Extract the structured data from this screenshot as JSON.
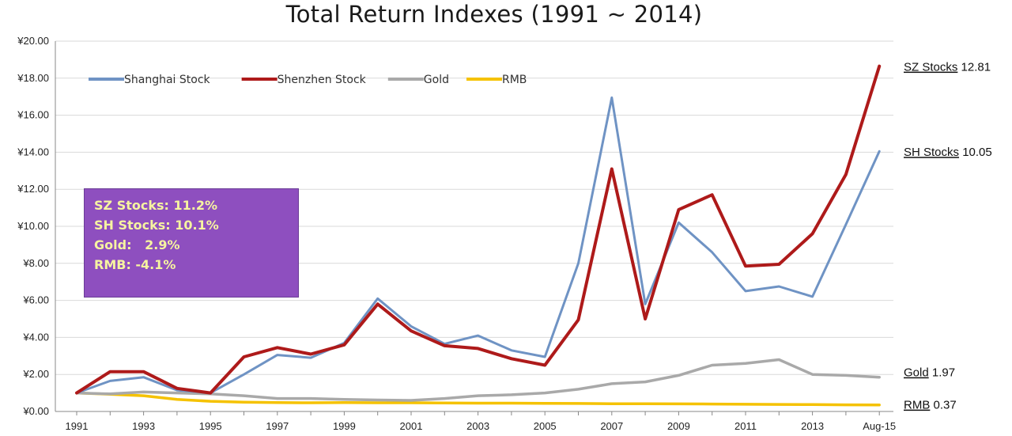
{
  "chart_data": {
    "type": "line",
    "title": "Total Return Indexes (1991 ~ 2014)",
    "xlabel": "",
    "ylabel": "",
    "ylim": [
      0,
      20
    ],
    "yticks": [
      "¥0.00",
      "¥2.00",
      "¥4.00",
      "¥6.00",
      "¥8.00",
      "¥10.00",
      "¥12.00",
      "¥14.00",
      "¥16.00",
      "¥18.00",
      "¥20.00"
    ],
    "x": [
      "1991",
      "1992",
      "1993",
      "1994",
      "1995",
      "1996",
      "1997",
      "1998",
      "1999",
      "2000",
      "2001",
      "2002",
      "2003",
      "2004",
      "2005",
      "2006",
      "2007",
      "2008",
      "2009",
      "2010",
      "2011",
      "2012",
      "2013",
      "2014",
      "Aug-15"
    ],
    "xtick_labels": [
      "1991",
      "",
      "1993",
      "",
      "1995",
      "",
      "1997",
      "",
      "1999",
      "",
      "2001",
      "",
      "2003",
      "",
      "2005",
      "",
      "2007",
      "",
      "2009",
      "",
      "2011",
      "",
      "2013",
      "",
      "Aug-15"
    ],
    "grid": "horizontal",
    "legend_position": "top-left",
    "series": [
      {
        "name": "Shanghai Stock",
        "color": "#6f93c4",
        "values": [
          1.0,
          1.65,
          1.85,
          1.15,
          1.0,
          2.0,
          3.05,
          2.9,
          3.7,
          6.1,
          4.6,
          3.65,
          4.1,
          3.3,
          2.95,
          8.0,
          16.95,
          5.8,
          10.2,
          8.6,
          6.5,
          6.75,
          6.2,
          10.1,
          14.05
        ]
      },
      {
        "name": "Shenzhen Stock",
        "color": "#ae1a1a",
        "values": [
          1.0,
          2.15,
          2.15,
          1.25,
          1.0,
          2.95,
          3.45,
          3.1,
          3.6,
          5.8,
          4.35,
          3.55,
          3.4,
          2.85,
          2.5,
          4.95,
          13.1,
          5.0,
          10.9,
          11.7,
          7.85,
          7.95,
          9.6,
          12.8,
          18.65
        ]
      },
      {
        "name": "Gold",
        "color": "#a9a9a9",
        "values": [
          1.0,
          0.95,
          1.05,
          1.0,
          0.95,
          0.85,
          0.7,
          0.7,
          0.65,
          0.62,
          0.6,
          0.7,
          0.85,
          0.9,
          1.0,
          1.2,
          1.5,
          1.6,
          1.95,
          2.5,
          2.6,
          2.8,
          2.0,
          1.95,
          1.85
        ]
      },
      {
        "name": "RMB",
        "color": "#f5c200",
        "values": [
          1.0,
          0.93,
          0.85,
          0.65,
          0.55,
          0.5,
          0.48,
          0.47,
          0.48,
          0.47,
          0.47,
          0.46,
          0.45,
          0.45,
          0.44,
          0.43,
          0.42,
          0.42,
          0.41,
          0.4,
          0.39,
          0.38,
          0.37,
          0.36,
          0.35
        ]
      }
    ],
    "end_labels": [
      {
        "name": "SZ Stocks",
        "value": "12.81",
        "series": "Shenzhen Stock",
        "y": 18.65
      },
      {
        "name": "SH Stocks",
        "value": "10.05",
        "series": "Shanghai Stock",
        "y": 14.05
      },
      {
        "name": "Gold",
        "value": "1.97",
        "series": "Gold",
        "y": 2.15
      },
      {
        "name": "RMB",
        "value": "0.37",
        "series": "RMB",
        "y": 0.4
      }
    ],
    "annotation_box": {
      "background": "#8e4fbf",
      "text_color": "#f6f4a0",
      "lines": [
        "SZ Stocks: 11.2%",
        "SH Stocks: 10.1%",
        "Gold:   2.9%",
        "RMB: -4.1%"
      ]
    }
  }
}
